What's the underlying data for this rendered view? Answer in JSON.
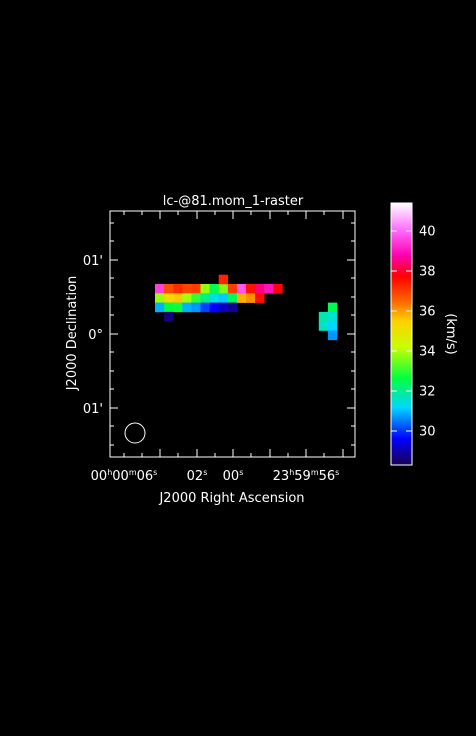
{
  "chart_data": {
    "type": "heatmap",
    "title": "lc-@81.mom_1-raster",
    "xlabel": "J2000 Right Ascension",
    "ylabel": "J2000 Declination",
    "colorbar_label": "(km/s)",
    "x_ticklabels": [
      {
        "hms": [
          "00",
          "h",
          "00",
          "m",
          "06",
          "s"
        ]
      },
      {
        "hms": [
          "",
          "",
          "",
          "",
          "02",
          "s"
        ]
      },
      {
        "hms": [
          "",
          "",
          "",
          "",
          "00",
          "s"
        ]
      },
      {
        "hms": [
          "23",
          "h",
          "59",
          "m",
          "56",
          "s"
        ]
      }
    ],
    "y_ticklabels": [
      "01'",
      "0°",
      "01'"
    ],
    "colorbar": {
      "vmin": 28.3,
      "vmax": 41.4,
      "tick_labels": [
        "30",
        "32",
        "34",
        "36",
        "38",
        "40"
      ],
      "tick_values": [
        30,
        32,
        34,
        36,
        38,
        40
      ]
    },
    "pixels": [
      {
        "col": 0,
        "row": 0,
        "value": 39.5
      },
      {
        "col": 1,
        "row": 0,
        "value": 36.8
      },
      {
        "col": 2,
        "row": 0,
        "value": 37.2
      },
      {
        "col": 3,
        "row": 0,
        "value": 36.9
      },
      {
        "col": 4,
        "row": 0,
        "value": 37.0
      },
      {
        "col": 5,
        "row": 0,
        "value": 33.8
      },
      {
        "col": 6,
        "row": 0,
        "value": 32.5
      },
      {
        "col": 7,
        "row": 0,
        "value": 33.6
      },
      {
        "col": 8,
        "row": 0,
        "value": 37.0
      },
      {
        "col": 9,
        "row": 0,
        "value": 39.8
      },
      {
        "col": 10,
        "row": 0,
        "value": 37.5
      },
      {
        "col": 11,
        "row": 0,
        "value": 38.5
      },
      {
        "col": 12,
        "row": 0,
        "value": 39.0
      },
      {
        "col": 13,
        "row": 0,
        "value": 37.8
      },
      {
        "col": 7,
        "row": -1,
        "value": 37.3
      },
      {
        "col": 0,
        "row": 1,
        "value": 33.8
      },
      {
        "col": 1,
        "row": 1,
        "value": 35.3
      },
      {
        "col": 2,
        "row": 1,
        "value": 35.6
      },
      {
        "col": 3,
        "row": 1,
        "value": 33.9
      },
      {
        "col": 4,
        "row": 1,
        "value": 33.0
      },
      {
        "col": 5,
        "row": 1,
        "value": 32.1
      },
      {
        "col": 6,
        "row": 1,
        "value": 31.4
      },
      {
        "col": 7,
        "row": 1,
        "value": 31.1
      },
      {
        "col": 8,
        "row": 1,
        "value": 32.4
      },
      {
        "col": 9,
        "row": 1,
        "value": 35.8
      },
      {
        "col": 10,
        "row": 1,
        "value": 36.1
      },
      {
        "col": 11,
        "row": 1,
        "value": 37.6
      },
      {
        "col": 0,
        "row": 2,
        "value": 30.9
      },
      {
        "col": 1,
        "row": 2,
        "value": 32.6
      },
      {
        "col": 2,
        "row": 2,
        "value": 32.7
      },
      {
        "col": 3,
        "row": 2,
        "value": 30.9
      },
      {
        "col": 4,
        "row": 2,
        "value": 30.7
      },
      {
        "col": 5,
        "row": 2,
        "value": 30.1
      },
      {
        "col": 6,
        "row": 2,
        "value": 29.6
      },
      {
        "col": 7,
        "row": 2,
        "value": 29.1
      },
      {
        "col": 8,
        "row": 2,
        "value": 28.8
      },
      {
        "col": 1,
        "row": 3,
        "value": 28.6
      },
      {
        "col": 19,
        "row": 2,
        "value": 32.5
      },
      {
        "col": 18,
        "row": 3,
        "value": 31.8
      },
      {
        "col": 19,
        "row": 3,
        "value": 31.5
      },
      {
        "col": 18,
        "row": 4,
        "value": 31.6
      },
      {
        "col": 19,
        "row": 4,
        "value": 31.2
      },
      {
        "col": 19,
        "row": 5,
        "value": 30.7
      }
    ],
    "grid": false,
    "beam": "circle, bottom-left"
  }
}
